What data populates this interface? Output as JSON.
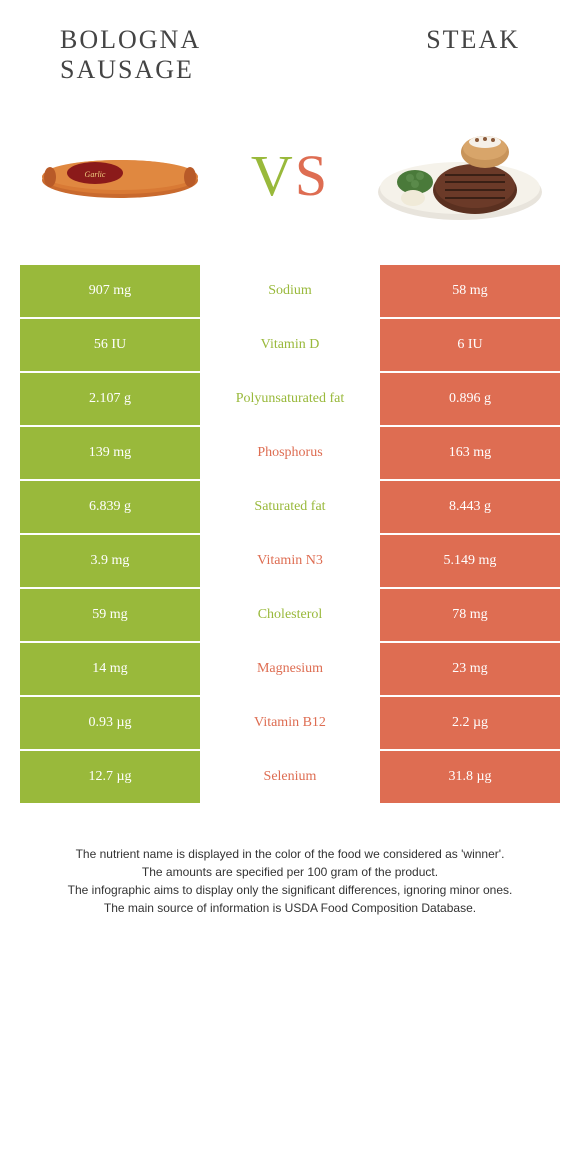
{
  "header": {
    "left_title": "BOLOGNA SAUSAGE",
    "right_title": "STEAK",
    "vs_v": "V",
    "vs_s": "S"
  },
  "colors": {
    "left": "#99b93b",
    "right": "#de6d52",
    "background": "#ffffff",
    "text": "#333333"
  },
  "table": {
    "rows": [
      {
        "left": "907 mg",
        "label": "Sodium",
        "right": "58 mg",
        "winner": "left"
      },
      {
        "left": "56 IU",
        "label": "Vitamin D",
        "right": "6 IU",
        "winner": "left"
      },
      {
        "left": "2.107 g",
        "label": "Polyunsaturated fat",
        "right": "0.896 g",
        "winner": "left"
      },
      {
        "left": "139 mg",
        "label": "Phosphorus",
        "right": "163 mg",
        "winner": "right"
      },
      {
        "left": "6.839 g",
        "label": "Saturated fat",
        "right": "8.443 g",
        "winner": "left"
      },
      {
        "left": "3.9 mg",
        "label": "Vitamin N3",
        "right": "5.149 mg",
        "winner": "right"
      },
      {
        "left": "59 mg",
        "label": "Cholesterol",
        "right": "78 mg",
        "winner": "left"
      },
      {
        "left": "14 mg",
        "label": "Magnesium",
        "right": "23 mg",
        "winner": "right"
      },
      {
        "left": "0.93 µg",
        "label": "Vitamin B12",
        "right": "2.2 µg",
        "winner": "right"
      },
      {
        "left": "12.7 µg",
        "label": "Selenium",
        "right": "31.8 µg",
        "winner": "right"
      }
    ]
  },
  "footnotes": [
    "The nutrient name is displayed in the color of the food we considered as 'winner'.",
    "The amounts are specified per 100 gram of the product.",
    "The infographic aims to display only the significant differences, ignoring minor ones.",
    "The main source of information is USDA Food Composition Database."
  ]
}
